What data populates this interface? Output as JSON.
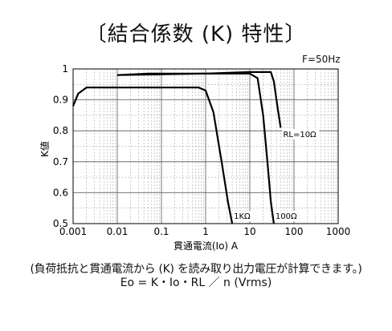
{
  "title": "〔結合係数 (K) 特性〕",
  "frequency_label": "F=50Hz",
  "caption": {
    "line1": "(負荷抵抗と貫通電流から (K) を読み取り出力電圧が計算できます。)",
    "line2": "Eo = K・Io・RL ／ n (Vrms)"
  },
  "chart_data": {
    "type": "line",
    "xscale": "log",
    "xlim": [
      0.001,
      1000
    ],
    "ylim": [
      0.5,
      1.0
    ],
    "xlabel": "貫通電流(Io) A",
    "ylabel": "K値",
    "xticks": [
      0.001,
      0.01,
      0.1,
      1,
      10,
      100,
      1000
    ],
    "xtick_labels": [
      "0.001",
      "0.01",
      "0.1",
      "1",
      "10",
      "100",
      "1000"
    ],
    "yticks": [
      0.5,
      0.6,
      0.7,
      0.8,
      0.9,
      1.0
    ],
    "ytick_labels": [
      "0.5",
      "0.6",
      "0.7",
      "0.8",
      "0.9",
      "1"
    ],
    "grid": true,
    "series": [
      {
        "name": "1KΩ",
        "points": [
          [
            0.001,
            0.88
          ],
          [
            0.0013,
            0.92
          ],
          [
            0.002,
            0.94
          ],
          [
            0.1,
            0.94
          ],
          [
            0.7,
            0.94
          ],
          [
            1.0,
            0.93
          ],
          [
            1.5,
            0.86
          ],
          [
            2.3,
            0.7
          ],
          [
            3.2,
            0.57
          ],
          [
            4.0,
            0.5
          ]
        ]
      },
      {
        "name": "100Ω",
        "points": [
          [
            0.01,
            0.98
          ],
          [
            0.05,
            0.985
          ],
          [
            1,
            0.985
          ],
          [
            10,
            0.985
          ],
          [
            15,
            0.97
          ],
          [
            20,
            0.85
          ],
          [
            25,
            0.7
          ],
          [
            30,
            0.57
          ],
          [
            35,
            0.5
          ]
        ]
      },
      {
        "name": "RL=10Ω",
        "points": [
          [
            0.01,
            0.98
          ],
          [
            1,
            0.985
          ],
          [
            10,
            0.99
          ],
          [
            30,
            0.99
          ],
          [
            35,
            0.96
          ],
          [
            42,
            0.88
          ],
          [
            50,
            0.81
          ]
        ]
      }
    ]
  }
}
